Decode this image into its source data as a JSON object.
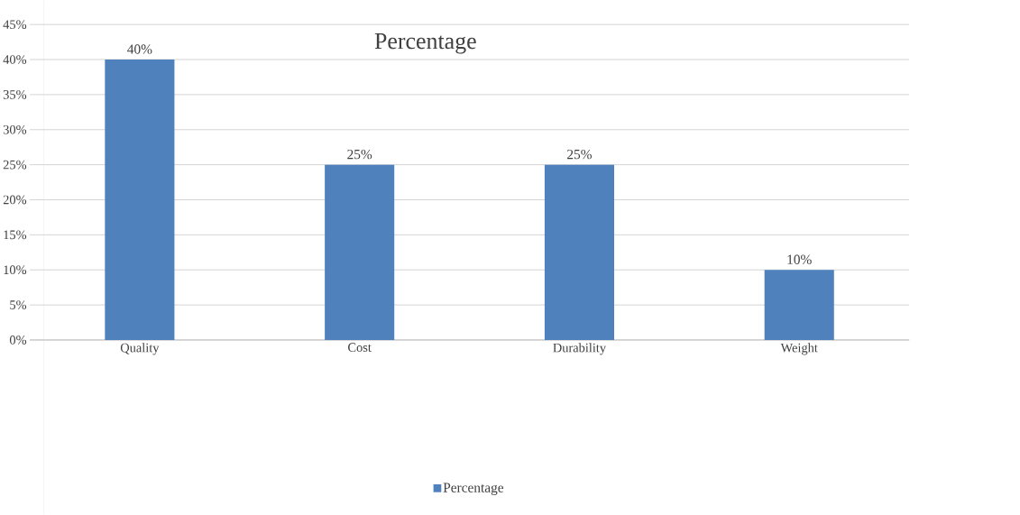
{
  "chart_data": {
    "type": "bar",
    "title": "Percentage",
    "categories": [
      "Quality",
      "Cost",
      "Durability",
      "Weight"
    ],
    "series": [
      {
        "name": "Percentage",
        "color": "#4f81bd",
        "values": [
          40,
          25,
          25,
          10
        ],
        "value_labels": [
          "40%",
          "25%",
          "25%",
          "10%"
        ]
      }
    ],
    "ylim": [
      0,
      45
    ],
    "yticks": [
      {
        "value": 0,
        "label": "0%"
      },
      {
        "value": 5,
        "label": "5%"
      },
      {
        "value": 10,
        "label": "10%"
      },
      {
        "value": 15,
        "label": "15%"
      },
      {
        "value": 20,
        "label": "20%"
      },
      {
        "value": 25,
        "label": "25%"
      },
      {
        "value": 30,
        "label": "30%"
      },
      {
        "value": 35,
        "label": "35%"
      },
      {
        "value": 40,
        "label": "40%"
      },
      {
        "value": 45,
        "label": "45%"
      }
    ],
    "grid": "y",
    "legend": "bottom"
  }
}
